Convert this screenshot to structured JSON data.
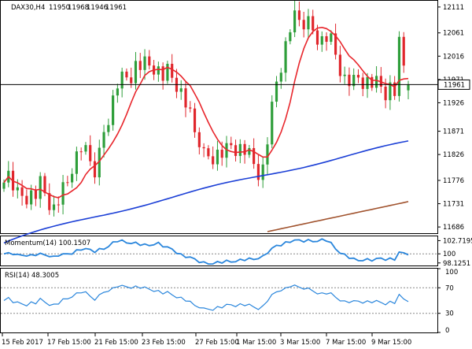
{
  "chart_data": {
    "type": "candlestick",
    "main": {
      "symbol": "DAX30,H4",
      "ohlc": [
        "11950",
        "11968",
        "11946",
        "11961"
      ],
      "last_price": "11961",
      "y_ticks": [
        "12111",
        "12061",
        "12016",
        "11971",
        "11926",
        "11871",
        "11826",
        "11776",
        "11731",
        "11686"
      ],
      "ylim": [
        11674,
        12123
      ]
    },
    "momentum": {
      "label": "Momentum(14) 100.1507",
      "y_ticks": [
        "102.7195",
        "100",
        "98.1251"
      ],
      "ylim": [
        97.6,
        103.6
      ]
    },
    "rsi": {
      "label": "RSI(14) 48.3005",
      "y_ticks": [
        "100",
        "70",
        "30",
        "0"
      ],
      "ylim": [
        0,
        100
      ]
    },
    "x_labels": [
      "15 Feb 2017",
      "17 Feb 15:00",
      "21 Feb 15:00",
      "23 Feb 15:00",
      "27 Feb 15:00",
      "1 Mar 15:00",
      "3 Mar 15:00",
      "7 Mar 15:00",
      "9 Mar 15:00"
    ],
    "colors": {
      "bull": "#2e9e3a",
      "bear": "#e0262c",
      "sma_short": "#e8262c",
      "sma_mid": "#1b3fd6",
      "sma_long": "#a0522d",
      "momentum_line": "#2a86dc",
      "rsi_line": "#2a86dc"
    }
  }
}
